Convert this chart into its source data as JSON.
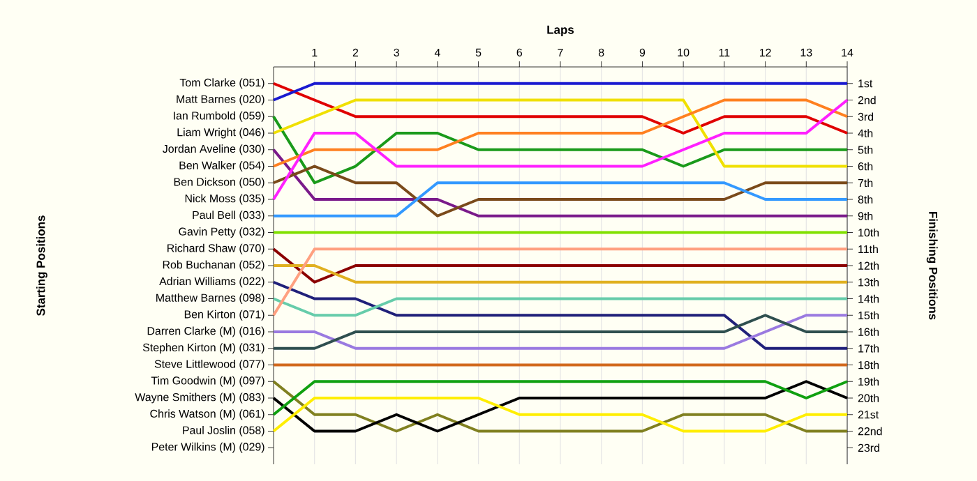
{
  "chart_data": {
    "type": "line",
    "xlabel": "Laps",
    "y2label": "Finishing Positions",
    "x": [
      0,
      1,
      2,
      3,
      4,
      5,
      6,
      7,
      8,
      9,
      10,
      11,
      12,
      13,
      14
    ],
    "xlim": [
      0,
      14
    ],
    "xticks": [
      1,
      2,
      3,
      4,
      5,
      6,
      7,
      8,
      9,
      10,
      11,
      12,
      13,
      14
    ],
    "y2lim": [
      24,
      0
    ],
    "y2ticks": [
      {
        "value": 1,
        "label": "1st"
      },
      {
        "value": 2,
        "label": "2nd"
      },
      {
        "value": 3,
        "label": "3rd"
      },
      {
        "value": 4,
        "label": "4th"
      },
      {
        "value": 5,
        "label": "5th"
      },
      {
        "value": 6,
        "label": "6th"
      },
      {
        "value": 7,
        "label": "7th"
      },
      {
        "value": 8,
        "label": "8th"
      },
      {
        "value": 9,
        "label": "9th"
      },
      {
        "value": 10,
        "label": "10th"
      },
      {
        "value": 11,
        "label": "11th"
      },
      {
        "value": 12,
        "label": "12th"
      },
      {
        "value": 13,
        "label": "13th"
      },
      {
        "value": 14,
        "label": "14th"
      },
      {
        "value": 15,
        "label": "15th"
      },
      {
        "value": 16,
        "label": "16th"
      },
      {
        "value": 17,
        "label": "17th"
      },
      {
        "value": 18,
        "label": "18th"
      },
      {
        "value": 19,
        "label": "19th"
      },
      {
        "value": 20,
        "label": "20th"
      },
      {
        "value": 21,
        "label": "21st"
      },
      {
        "value": 22,
        "label": "22nd"
      },
      {
        "value": 23,
        "label": "23rd"
      }
    ],
    "annotations": [
      "Tom Clarke (051)",
      "Matt Barnes (020)",
      "Ian Rumbold (059)",
      "Liam Wright (046)",
      "Jordan Aveline (030)",
      "Ben Walker (054)",
      "Ben Dickson (050)",
      "Nick Moss (035)",
      "Paul Bell (033)",
      "Gavin Petty (032)",
      "Richard Shaw (070)",
      "Rob Buchanan (052)",
      "Adrian Williams (022)",
      "Matthew Barnes (098)",
      "Ben Kirton (071)",
      "Darren Clarke (M) (016)",
      "Stephen Kirton (M) (031)",
      "Steve Littlewood (077)",
      "Tim Goodwin (M) (097)",
      "Wayne Smithers (M) (083)",
      "Chris Watson (M) (061)",
      "Paul Joslin (058)",
      "Peter Wilkins (M) (029)",
      "**Starting Positions**"
    ],
    "grid": "x",
    "marker": "none",
    "line_style": "solid",
    "series": [
      {
        "axis": "y2",
        "color": "#e00000",
        "values": [
          1,
          2,
          3,
          3,
          3,
          3,
          3,
          3,
          3,
          3,
          4,
          3,
          3,
          3,
          4
        ]
      },
      {
        "axis": "y2",
        "color": "#1a1ad0",
        "values": [
          2,
          1,
          1,
          1,
          1,
          1,
          1,
          1,
          1,
          1,
          1,
          1,
          1,
          1,
          1
        ]
      },
      {
        "axis": "y2",
        "color": "#1a9a1a",
        "values": [
          3,
          7,
          6,
          4,
          4,
          5,
          5,
          5,
          5,
          5,
          6,
          5,
          5,
          5,
          5
        ]
      },
      {
        "axis": "y2",
        "color": "#f0e000",
        "values": [
          4,
          3,
          2,
          2,
          2,
          2,
          2,
          2,
          2,
          2,
          2,
          6,
          6,
          6,
          6
        ]
      },
      {
        "axis": "y2",
        "color": "#7a1a8a",
        "values": [
          5,
          8,
          8,
          8,
          8,
          9,
          9,
          9,
          9,
          9,
          9,
          9,
          9,
          9,
          9
        ]
      },
      {
        "axis": "y2",
        "color": "#ff8020",
        "values": [
          6,
          5,
          5,
          5,
          5,
          4,
          4,
          4,
          4,
          4,
          3,
          2,
          2,
          2,
          3
        ]
      },
      {
        "axis": "y2",
        "color": "#7a4a1a",
        "values": [
          7,
          6,
          7,
          7,
          9,
          8,
          8,
          8,
          8,
          8,
          8,
          8,
          7,
          7,
          7
        ]
      },
      {
        "axis": "y2",
        "color": "#ff20ff",
        "values": [
          8,
          4,
          4,
          6,
          6,
          6,
          6,
          6,
          6,
          6,
          5,
          4,
          4,
          4,
          2
        ]
      },
      {
        "axis": "y2",
        "color": "#3399ff",
        "values": [
          9,
          9,
          9,
          9,
          7,
          7,
          7,
          7,
          7,
          7,
          7,
          7,
          8,
          8,
          8
        ]
      },
      {
        "axis": "y2",
        "color": "#80e000",
        "values": [
          10,
          10,
          10,
          10,
          10,
          10,
          10,
          10,
          10,
          10,
          10,
          10,
          10,
          10,
          10
        ]
      },
      {
        "axis": "y2",
        "color": "#8b0000",
        "values": [
          11,
          13,
          12,
          12,
          12,
          12,
          12,
          12,
          12,
          12,
          12,
          12,
          12,
          12,
          12
        ]
      },
      {
        "axis": "y2",
        "color": "#e0b020",
        "values": [
          12,
          12,
          13,
          13,
          13,
          13,
          13,
          13,
          13,
          13,
          13,
          13,
          13,
          13,
          13
        ]
      },
      {
        "axis": "y2",
        "color": "#20207a",
        "values": [
          13,
          14,
          14,
          15,
          15,
          15,
          15,
          15,
          15,
          15,
          15,
          15,
          17,
          17,
          17
        ]
      },
      {
        "axis": "y2",
        "color": "#66ccaa",
        "values": [
          14,
          15,
          15,
          14,
          14,
          14,
          14,
          14,
          14,
          14,
          14,
          14,
          14,
          14,
          14
        ]
      },
      {
        "axis": "y2",
        "color": "#ffa080",
        "values": [
          15,
          11,
          11,
          11,
          11,
          11,
          11,
          11,
          11,
          11,
          11,
          11,
          11,
          11,
          11
        ]
      },
      {
        "axis": "y2",
        "color": "#9a7ae0",
        "values": [
          16,
          16,
          17,
          17,
          17,
          17,
          17,
          17,
          17,
          17,
          17,
          17,
          16,
          15,
          15
        ]
      },
      {
        "axis": "y2",
        "color": "#2f4f4f",
        "values": [
          17,
          17,
          16,
          16,
          16,
          16,
          16,
          16,
          16,
          16,
          16,
          16,
          15,
          16,
          16
        ]
      },
      {
        "axis": "y2",
        "color": "#d2691e",
        "values": [
          18,
          18,
          18,
          18,
          18,
          18,
          18,
          18,
          18,
          18,
          18,
          18,
          18,
          18,
          18
        ]
      },
      {
        "axis": "y2",
        "color": "#808020",
        "values": [
          19,
          21,
          21,
          22,
          21,
          22,
          22,
          22,
          22,
          22,
          21,
          21,
          21,
          22,
          22
        ]
      },
      {
        "axis": "y2",
        "color": "#000000",
        "values": [
          20,
          22,
          22,
          21,
          22,
          21,
          20,
          20,
          20,
          20,
          20,
          20,
          20,
          19,
          20
        ]
      },
      {
        "axis": "y2",
        "color": "#10a010",
        "values": [
          21,
          19,
          19,
          19,
          19,
          19,
          19,
          19,
          19,
          19,
          19,
          19,
          19,
          20,
          19
        ]
      },
      {
        "axis": "y2",
        "color": "#ffee00",
        "values": [
          22,
          20,
          20,
          20,
          20,
          20,
          21,
          21,
          21,
          21,
          22,
          22,
          22,
          21,
          21
        ]
      }
    ]
  }
}
